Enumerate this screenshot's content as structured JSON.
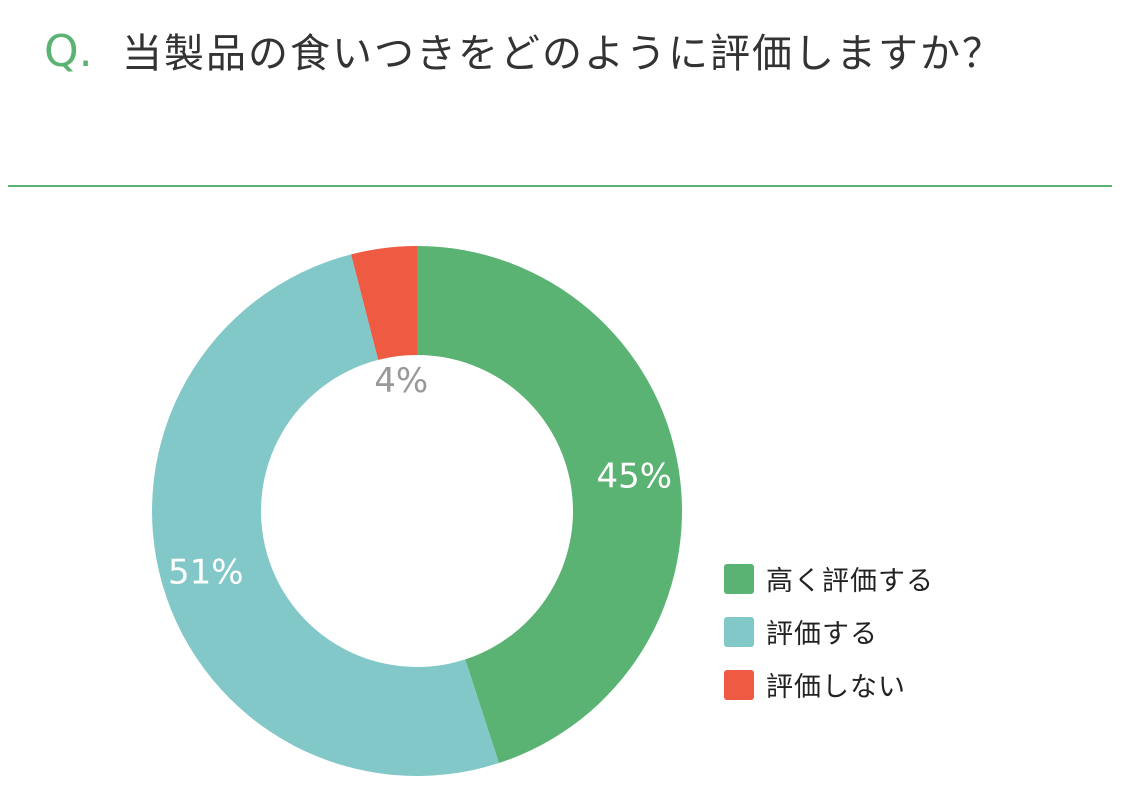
{
  "question": {
    "mark": "Q.",
    "text": "当製品の食いつきをどのように評価しますか？"
  },
  "chart_data": {
    "type": "pie",
    "variant": "donut",
    "title": "",
    "categories": [
      "高く評価する",
      "評価する",
      "評価しない"
    ],
    "values": [
      45,
      51,
      4
    ],
    "labels": [
      "45%",
      "51%",
      "4%"
    ],
    "colors": [
      "#5bb373",
      "#82c8c9",
      "#ef5a43"
    ],
    "label_colors": [
      "#ffffff",
      "#ffffff",
      "#999999"
    ],
    "legend_position": "right"
  },
  "colors": {
    "accent": "#5bb373"
  }
}
